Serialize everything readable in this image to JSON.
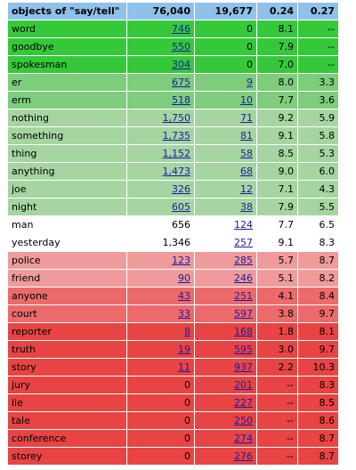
{
  "table": {
    "header": {
      "label": "objects of \"say/tell\"",
      "col1": "76,040",
      "col2": "19,677",
      "col3": "0.24",
      "col4": "0.27"
    },
    "rows": [
      {
        "word": "word",
        "c1": "746",
        "c1_link": true,
        "c2": "0",
        "c2_link": false,
        "c3": "8.1",
        "c4": "--",
        "bg": "#35c93a"
      },
      {
        "word": "goodbye",
        "c1": "550",
        "c1_link": true,
        "c2": "0",
        "c2_link": false,
        "c3": "7.9",
        "c4": "--",
        "bg": "#35c93a"
      },
      {
        "word": "spokesman",
        "c1": "304",
        "c1_link": true,
        "c2": "0",
        "c2_link": false,
        "c3": "7.0",
        "c4": "--",
        "bg": "#35c93a"
      },
      {
        "word": "er",
        "c1": "675",
        "c1_link": true,
        "c2": "9",
        "c2_link": true,
        "c3": "8.0",
        "c4": "3.3",
        "bg": "#7dcd7d"
      },
      {
        "word": "erm",
        "c1": "518",
        "c1_link": true,
        "c2": "10",
        "c2_link": true,
        "c3": "7.7",
        "c4": "3.6",
        "bg": "#7dcd7d"
      },
      {
        "word": "nothing",
        "c1": "1,750",
        "c1_link": true,
        "c2": "71",
        "c2_link": true,
        "c3": "9.2",
        "c4": "5.9",
        "bg": "#a6d5a1"
      },
      {
        "word": "something",
        "c1": "1,735",
        "c1_link": true,
        "c2": "81",
        "c2_link": true,
        "c3": "9.1",
        "c4": "5.8",
        "bg": "#a6d5a1"
      },
      {
        "word": "thing",
        "c1": "1,152",
        "c1_link": true,
        "c2": "58",
        "c2_link": true,
        "c3": "8.5",
        "c4": "5.3",
        "bg": "#a6d5a1"
      },
      {
        "word": "anything",
        "c1": "1,473",
        "c1_link": true,
        "c2": "68",
        "c2_link": true,
        "c3": "9.0",
        "c4": "6.0",
        "bg": "#a6d5a1"
      },
      {
        "word": "joe",
        "c1": "326",
        "c1_link": true,
        "c2": "12",
        "c2_link": true,
        "c3": "7.1",
        "c4": "4.3",
        "bg": "#a6d5a1"
      },
      {
        "word": "night",
        "c1": "605",
        "c1_link": true,
        "c2": "38",
        "c2_link": true,
        "c3": "7.9",
        "c4": "5.5",
        "bg": "#a6d5a1"
      },
      {
        "word": "man",
        "c1": "656",
        "c1_link": false,
        "c2": "124",
        "c2_link": true,
        "c3": "7.7",
        "c4": "6.5",
        "bg": "#ffffff"
      },
      {
        "word": "yesterday",
        "c1": "1,346",
        "c1_link": false,
        "c2": "257",
        "c2_link": true,
        "c3": "9.1",
        "c4": "8.3",
        "bg": "#ffffff"
      },
      {
        "word": "police",
        "c1": "123",
        "c1_link": true,
        "c2": "285",
        "c2_link": true,
        "c3": "5.7",
        "c4": "8.7",
        "bg": "#ef9b9b"
      },
      {
        "word": "friend",
        "c1": "90",
        "c1_link": true,
        "c2": "246",
        "c2_link": true,
        "c3": "5.1",
        "c4": "8.2",
        "bg": "#ef9b9b"
      },
      {
        "word": "anyone",
        "c1": "43",
        "c1_link": true,
        "c2": "251",
        "c2_link": true,
        "c3": "4.1",
        "c4": "8.4",
        "bg": "#ec6a6a"
      },
      {
        "word": "court",
        "c1": "33",
        "c1_link": true,
        "c2": "597",
        "c2_link": true,
        "c3": "3.8",
        "c4": "9.7",
        "bg": "#ec6a6a"
      },
      {
        "word": "reporter",
        "c1": "8",
        "c1_link": true,
        "c2": "168",
        "c2_link": true,
        "c3": "1.8",
        "c4": "8.1",
        "bg": "#e84444"
      },
      {
        "word": "truth",
        "c1": "19",
        "c1_link": true,
        "c2": "595",
        "c2_link": true,
        "c3": "3.0",
        "c4": "9.7",
        "bg": "#e84444"
      },
      {
        "word": "story",
        "c1": "11",
        "c1_link": true,
        "c2": "937",
        "c2_link": true,
        "c3": "2.2",
        "c4": "10.3",
        "bg": "#e84444"
      },
      {
        "word": "jury",
        "c1": "0",
        "c1_link": false,
        "c2": "201",
        "c2_link": true,
        "c3": "--",
        "c4": "8.3",
        "bg": "#e84444"
      },
      {
        "word": "lie",
        "c1": "0",
        "c1_link": false,
        "c2": "227",
        "c2_link": true,
        "c3": "--",
        "c4": "8.5",
        "bg": "#e84444"
      },
      {
        "word": "tale",
        "c1": "0",
        "c1_link": false,
        "c2": "250",
        "c2_link": true,
        "c3": "--",
        "c4": "8.6",
        "bg": "#e84444"
      },
      {
        "word": "conference",
        "c1": "0",
        "c1_link": false,
        "c2": "274",
        "c2_link": true,
        "c3": "--",
        "c4": "8.7",
        "bg": "#e84444"
      },
      {
        "word": "storey",
        "c1": "0",
        "c1_link": false,
        "c2": "276",
        "c2_link": true,
        "c3": "--",
        "c4": "8.7",
        "bg": "#e84444"
      }
    ]
  }
}
